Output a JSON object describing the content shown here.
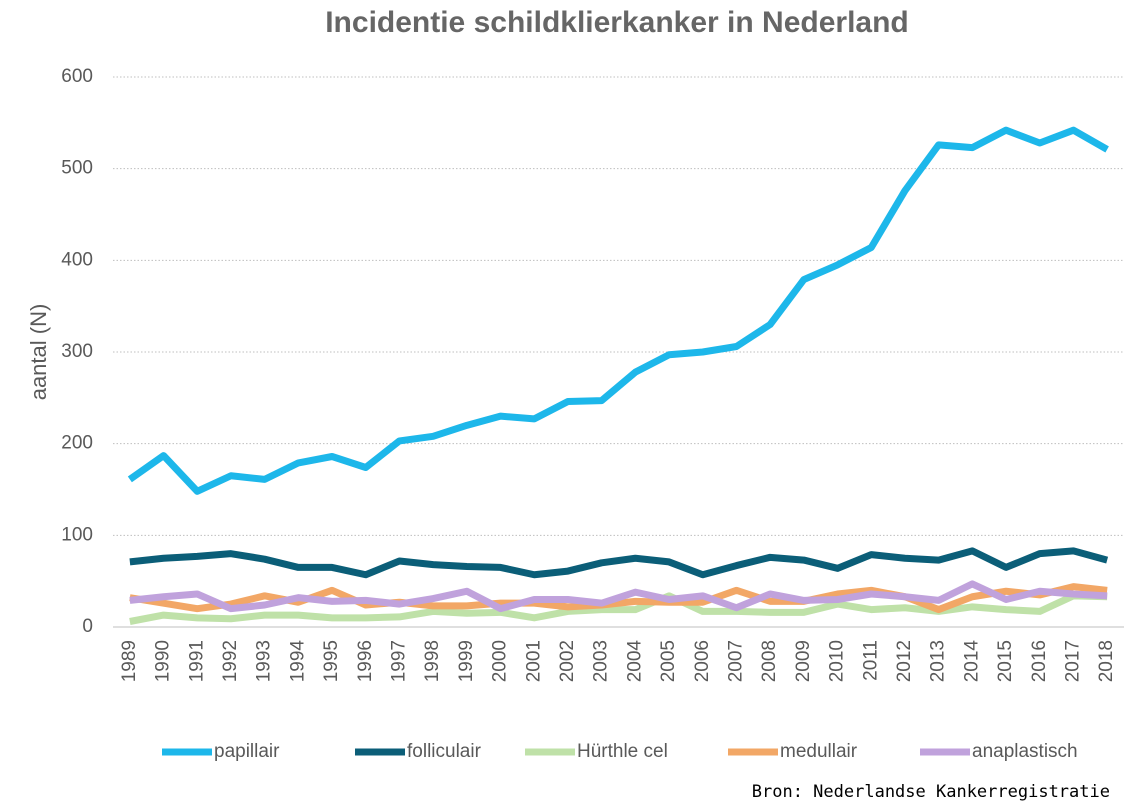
{
  "chart_data": {
    "type": "line",
    "title": "Incidentie schildklierkanker in Nederland",
    "y_label": "aantal (N)",
    "source": "Bron: Nederlandse Kankerregistratie",
    "categories": [
      "1989",
      "1990",
      "1991",
      "1992",
      "1993",
      "1994",
      "1995",
      "1996",
      "1997",
      "1998",
      "1999",
      "2000",
      "2001",
      "2002",
      "2003",
      "2004",
      "2005",
      "2006",
      "2007",
      "2008",
      "2009",
      "2010",
      "2011",
      "2012",
      "2013",
      "2014",
      "2015",
      "2016",
      "2017",
      "2018"
    ],
    "series": [
      {
        "name": "papillair",
        "color": "#1db7ea",
        "values": [
          161,
          187,
          148,
          165,
          161,
          179,
          186,
          174,
          203,
          208,
          220,
          230,
          227,
          246,
          247,
          278,
          297,
          300,
          306,
          330,
          379,
          395,
          414,
          476,
          526,
          523,
          542,
          528,
          542,
          521
        ]
      },
      {
        "name": "folliculair",
        "color": "#0b5e78",
        "values": [
          71,
          75,
          77,
          80,
          74,
          65,
          65,
          57,
          72,
          68,
          66,
          65,
          57,
          61,
          70,
          75,
          71,
          57,
          67,
          76,
          73,
          64,
          79,
          75,
          73,
          83,
          65,
          80,
          83,
          73
        ]
      },
      {
        "name": "Hürthle cel",
        "color": "#bfe1a8",
        "values": [
          6,
          13,
          10,
          9,
          13,
          13,
          10,
          10,
          11,
          17,
          15,
          16,
          10,
          17,
          19,
          19,
          34,
          17,
          17,
          16,
          16,
          25,
          19,
          21,
          17,
          22,
          19,
          17,
          34,
          33
        ]
      },
      {
        "name": "medullair",
        "color": "#f2a766",
        "values": [
          32,
          26,
          20,
          25,
          34,
          27,
          40,
          24,
          27,
          23,
          23,
          26,
          26,
          22,
          24,
          28,
          27,
          27,
          40,
          28,
          28,
          36,
          40,
          33,
          19,
          33,
          39,
          35,
          44,
          40
        ]
      },
      {
        "name": "anaplastisch",
        "color": "#c0a2dc",
        "values": [
          29,
          33,
          36,
          20,
          24,
          32,
          28,
          29,
          25,
          31,
          39,
          20,
          30,
          30,
          26,
          38,
          30,
          34,
          21,
          36,
          29,
          30,
          36,
          33,
          29,
          47,
          30,
          39,
          36,
          34
        ]
      }
    ],
    "ylim": [
      0,
      600
    ],
    "yticks": [
      0,
      100,
      200,
      300,
      400,
      500,
      600
    ],
    "grid": true,
    "legend": "bottom"
  }
}
